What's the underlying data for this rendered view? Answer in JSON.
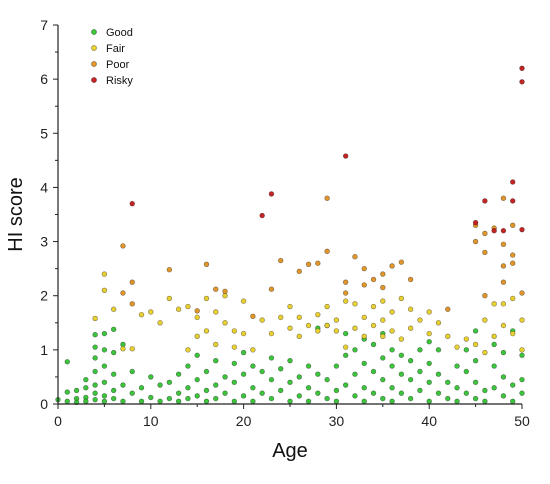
{
  "chart_data": {
    "type": "scatter",
    "title": "",
    "xlabel": "Age",
    "ylabel": "HI score",
    "xlim": [
      0,
      50
    ],
    "ylim": [
      0,
      7
    ],
    "xticks": [
      "0",
      "10",
      "20",
      "30",
      "40",
      "50"
    ],
    "yticks": [
      "0",
      "1",
      "2",
      "3",
      "4",
      "5",
      "6",
      "7"
    ],
    "grid": false,
    "legend_position": "top-left",
    "series": [
      {
        "name": "Good",
        "color": "#3cc43c",
        "points": [
          [
            0,
            0.08
          ],
          [
            1,
            0.78
          ],
          [
            1,
            0.05
          ],
          [
            1,
            0.22
          ],
          [
            2,
            0.1
          ],
          [
            2,
            0.25
          ],
          [
            2,
            0.03
          ],
          [
            3,
            0.12
          ],
          [
            3,
            0.3
          ],
          [
            3,
            0.45
          ],
          [
            3,
            0.05
          ],
          [
            4,
            0.2
          ],
          [
            4,
            0.35
          ],
          [
            4,
            0.6
          ],
          [
            4,
            0.85
          ],
          [
            4,
            1.05
          ],
          [
            4,
            1.28
          ],
          [
            4,
            0.08
          ],
          [
            5,
            0.15
          ],
          [
            5,
            0.4
          ],
          [
            5,
            0.7
          ],
          [
            5,
            1.0
          ],
          [
            5,
            1.3
          ],
          [
            5,
            0.05
          ],
          [
            6,
            0.25
          ],
          [
            6,
            0.55
          ],
          [
            6,
            0.95
          ],
          [
            6,
            1.38
          ],
          [
            6,
            0.1
          ],
          [
            7,
            0.35
          ],
          [
            7,
            1.1
          ],
          [
            7,
            0.05
          ],
          [
            8,
            0.2
          ],
          [
            8,
            0.6
          ],
          [
            9,
            0.05
          ],
          [
            9,
            0.3
          ],
          [
            10,
            0.12
          ],
          [
            10,
            0.5
          ],
          [
            11,
            0.05
          ],
          [
            11,
            0.35
          ],
          [
            12,
            0.1
          ],
          [
            12,
            0.4
          ],
          [
            13,
            0.2
          ],
          [
            13,
            0.55
          ],
          [
            13,
            0.05
          ],
          [
            14,
            0.3
          ],
          [
            14,
            0.7
          ],
          [
            14,
            0.1
          ],
          [
            15,
            0.15
          ],
          [
            15,
            0.45
          ],
          [
            15,
            0.9
          ],
          [
            16,
            0.25
          ],
          [
            16,
            0.6
          ],
          [
            16,
            0.05
          ],
          [
            17,
            0.35
          ],
          [
            17,
            0.8
          ],
          [
            17,
            0.1
          ],
          [
            18,
            0.2
          ],
          [
            18,
            0.5
          ],
          [
            19,
            0.05
          ],
          [
            19,
            0.4
          ],
          [
            19,
            0.75
          ],
          [
            20,
            0.15
          ],
          [
            20,
            0.55
          ],
          [
            20,
            0.95
          ],
          [
            21,
            0.3
          ],
          [
            21,
            0.7
          ],
          [
            21,
            0.05
          ],
          [
            22,
            0.2
          ],
          [
            22,
            0.6
          ],
          [
            23,
            0.1
          ],
          [
            23,
            0.45
          ],
          [
            23,
            0.85
          ],
          [
            24,
            0.25
          ],
          [
            24,
            0.65
          ],
          [
            25,
            0.05
          ],
          [
            25,
            0.4
          ],
          [
            25,
            0.8
          ],
          [
            26,
            0.15
          ],
          [
            26,
            0.5
          ],
          [
            27,
            0.3
          ],
          [
            27,
            0.7
          ],
          [
            27,
            0.05
          ],
          [
            28,
            0.2
          ],
          [
            28,
            1.4
          ],
          [
            28,
            0.55
          ],
          [
            29,
            0.1
          ],
          [
            29,
            0.45
          ],
          [
            29,
            1.45
          ],
          [
            30,
            0.25
          ],
          [
            30,
            0.7
          ],
          [
            30,
            0.05
          ],
          [
            31,
            0.35
          ],
          [
            31,
            0.9
          ],
          [
            31,
            1.3
          ],
          [
            32,
            0.15
          ],
          [
            32,
            0.55
          ],
          [
            32,
            1.0
          ],
          [
            33,
            0.3
          ],
          [
            33,
            0.75
          ],
          [
            33,
            1.2
          ],
          [
            33,
            0.05
          ],
          [
            34,
            0.2
          ],
          [
            34,
            0.6
          ],
          [
            34,
            1.1
          ],
          [
            35,
            0.1
          ],
          [
            35,
            0.45
          ],
          [
            35,
            0.85
          ],
          [
            35,
            1.3
          ],
          [
            36,
            0.3
          ],
          [
            36,
            0.7
          ],
          [
            36,
            1.0
          ],
          [
            36,
            0.05
          ],
          [
            37,
            0.2
          ],
          [
            37,
            0.55
          ],
          [
            37,
            0.9
          ],
          [
            38,
            0.1
          ],
          [
            38,
            0.45
          ],
          [
            38,
            0.8
          ],
          [
            39,
            0.25
          ],
          [
            39,
            0.6
          ],
          [
            39,
            1.0
          ],
          [
            40,
            0.05
          ],
          [
            40,
            0.4
          ],
          [
            40,
            0.75
          ],
          [
            40,
            1.15
          ],
          [
            41,
            0.2
          ],
          [
            41,
            0.55
          ],
          [
            41,
            1.0
          ],
          [
            42,
            0.1
          ],
          [
            42,
            0.4
          ],
          [
            43,
            0.3
          ],
          [
            43,
            0.7
          ],
          [
            43,
            0.05
          ],
          [
            44,
            0.2
          ],
          [
            44,
            0.6
          ],
          [
            44,
            1.0
          ],
          [
            45,
            0.1
          ],
          [
            45,
            0.4
          ],
          [
            45,
            0.8
          ],
          [
            45,
            1.35
          ],
          [
            46,
            0.25
          ],
          [
            46,
            0.05
          ],
          [
            47,
            0.3
          ],
          [
            47,
            0.7
          ],
          [
            47,
            1.1
          ],
          [
            48,
            0.15
          ],
          [
            48,
            0.5
          ],
          [
            48,
            0.95
          ],
          [
            49,
            0.05
          ],
          [
            49,
            0.35
          ],
          [
            49,
            1.35
          ],
          [
            50,
            0.2
          ],
          [
            50,
            0.45
          ],
          [
            50,
            0.9
          ]
        ]
      },
      {
        "name": "Fair",
        "color": "#e8d030",
        "points": [
          [
            4,
            1.58
          ],
          [
            5,
            2.1
          ],
          [
            5,
            2.4
          ],
          [
            6,
            1.75
          ],
          [
            7,
            1.02
          ],
          [
            8,
            1.02
          ],
          [
            9,
            1.65
          ],
          [
            10,
            1.7
          ],
          [
            11,
            1.5
          ],
          [
            12,
            1.95
          ],
          [
            13,
            1.75
          ],
          [
            14,
            1.8
          ],
          [
            14,
            1.0
          ],
          [
            15,
            1.6
          ],
          [
            15,
            1.25
          ],
          [
            16,
            1.95
          ],
          [
            16,
            1.35
          ],
          [
            17,
            1.7
          ],
          [
            17,
            1.1
          ],
          [
            18,
            1.5
          ],
          [
            18,
            2.0
          ],
          [
            19,
            1.35
          ],
          [
            19,
            1.05
          ],
          [
            20,
            1.9
          ],
          [
            20,
            1.3
          ],
          [
            21,
            1.0
          ],
          [
            22,
            1.55
          ],
          [
            23,
            1.3
          ],
          [
            24,
            1.6
          ],
          [
            25,
            1.4
          ],
          [
            25,
            1.8
          ],
          [
            26,
            1.6
          ],
          [
            26,
            1.25
          ],
          [
            27,
            1.45
          ],
          [
            28,
            1.65
          ],
          [
            28,
            1.35
          ],
          [
            29,
            1.8
          ],
          [
            29,
            1.45
          ],
          [
            30,
            1.35
          ],
          [
            30,
            1.55
          ],
          [
            31,
            1.9
          ],
          [
            31,
            1.05
          ],
          [
            32,
            1.4
          ],
          [
            32,
            1.85
          ],
          [
            33,
            1.6
          ],
          [
            33,
            1.25
          ],
          [
            34,
            1.8
          ],
          [
            34,
            1.45
          ],
          [
            35,
            1.55
          ],
          [
            35,
            1.25
          ],
          [
            35,
            1.9
          ],
          [
            36,
            1.7
          ],
          [
            36,
            1.35
          ],
          [
            37,
            1.95
          ],
          [
            37,
            1.2
          ],
          [
            38,
            1.75
          ],
          [
            38,
            1.4
          ],
          [
            39,
            1.55
          ],
          [
            40,
            1.3
          ],
          [
            40,
            1.7
          ],
          [
            41,
            1.5
          ],
          [
            42,
            1.25
          ],
          [
            43,
            1.05
          ],
          [
            44,
            1.2
          ],
          [
            45,
            1.1
          ],
          [
            46,
            1.55
          ],
          [
            46,
            0.95
          ],
          [
            47,
            1.85
          ],
          [
            47,
            1.25
          ],
          [
            48,
            1.45
          ],
          [
            48,
            1.85
          ],
          [
            49,
            1.95
          ],
          [
            49,
            1.3
          ],
          [
            50,
            1.55
          ],
          [
            50,
            1.0
          ]
        ]
      },
      {
        "name": "Poor",
        "color": "#e0962a",
        "points": [
          [
            7,
            2.92
          ],
          [
            7,
            2.05
          ],
          [
            8,
            2.25
          ],
          [
            8,
            1.85
          ],
          [
            12,
            2.48
          ],
          [
            15,
            1.72
          ],
          [
            16,
            2.58
          ],
          [
            17,
            2.12
          ],
          [
            18,
            2.08
          ],
          [
            21,
            1.62
          ],
          [
            23,
            2.12
          ],
          [
            24,
            2.65
          ],
          [
            26,
            2.45
          ],
          [
            27,
            2.58
          ],
          [
            28,
            2.6
          ],
          [
            29,
            2.82
          ],
          [
            29,
            3.8
          ],
          [
            31,
            2.25
          ],
          [
            31,
            2.05
          ],
          [
            32,
            2.72
          ],
          [
            33,
            2.2
          ],
          [
            33,
            2.5
          ],
          [
            34,
            2.3
          ],
          [
            35,
            2.15
          ],
          [
            35,
            2.4
          ],
          [
            36,
            2.55
          ],
          [
            37,
            2.62
          ],
          [
            38,
            2.3
          ],
          [
            42,
            1.75
          ],
          [
            45,
            3.3
          ],
          [
            45,
            3.0
          ],
          [
            46,
            3.15
          ],
          [
            46,
            2.8
          ],
          [
            46,
            2.0
          ],
          [
            47,
            3.25
          ],
          [
            48,
            3.8
          ],
          [
            48,
            2.95
          ],
          [
            48,
            2.55
          ],
          [
            48,
            2.25
          ],
          [
            49,
            2.75
          ],
          [
            49,
            2.6
          ],
          [
            49,
            3.3
          ],
          [
            50,
            2.05
          ]
        ]
      },
      {
        "name": "Risky",
        "color": "#c42424",
        "points": [
          [
            8,
            3.7
          ],
          [
            22,
            3.48
          ],
          [
            23,
            3.88
          ],
          [
            31,
            4.58
          ],
          [
            45,
            3.35
          ],
          [
            46,
            3.75
          ],
          [
            47,
            3.2
          ],
          [
            48,
            3.2
          ],
          [
            49,
            4.1
          ],
          [
            49,
            3.75
          ],
          [
            50,
            3.22
          ],
          [
            50,
            5.95
          ],
          [
            50,
            6.2
          ]
        ]
      }
    ]
  }
}
